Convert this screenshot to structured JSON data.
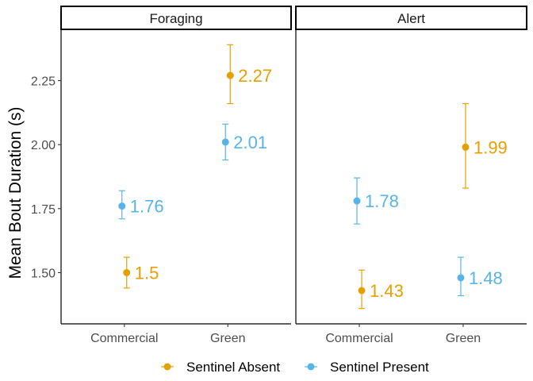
{
  "chart_data": {
    "type": "scatter",
    "ylabel": "Mean Bout Duration (s)",
    "xlabel": "",
    "ylim": [
      1.3,
      2.45
    ],
    "yticks": [
      1.5,
      1.75,
      2.0,
      2.25
    ],
    "ytick_labels": [
      "1.50",
      "1.75",
      "2.00",
      "2.25"
    ],
    "categories": [
      "Commercial",
      "Green"
    ],
    "grid": false,
    "legend_position": "bottom",
    "panels": [
      {
        "label": "Foraging",
        "series": [
          {
            "name": "Sentinel Absent",
            "color": "#E69F00",
            "values": [
              1.5,
              2.27
            ],
            "lower": [
              1.44,
              2.16
            ],
            "upper": [
              1.56,
              2.39
            ],
            "labels": [
              "1.5",
              "2.27"
            ]
          },
          {
            "name": "Sentinel Present",
            "color": "#56B4E9",
            "values": [
              1.76,
              2.01
            ],
            "lower": [
              1.71,
              1.94
            ],
            "upper": [
              1.82,
              2.08
            ],
            "labels": [
              "1.76",
              "2.01"
            ]
          }
        ]
      },
      {
        "label": "Alert",
        "series": [
          {
            "name": "Sentinel Absent",
            "color": "#E69F00",
            "values": [
              1.43,
              1.99
            ],
            "lower": [
              1.36,
              1.83
            ],
            "upper": [
              1.51,
              2.16
            ],
            "labels": [
              "1.43",
              "1.99"
            ]
          },
          {
            "name": "Sentinel Present",
            "color": "#56B4E9",
            "values": [
              1.78,
              1.48
            ],
            "lower": [
              1.69,
              1.41
            ],
            "upper": [
              1.87,
              1.56
            ],
            "labels": [
              "1.78",
              "1.48"
            ]
          }
        ]
      }
    ]
  }
}
